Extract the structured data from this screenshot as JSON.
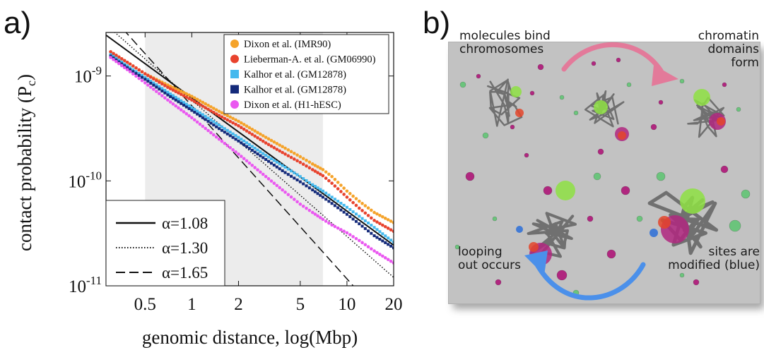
{
  "panel_a": {
    "label": "a)",
    "chart_data": {
      "type": "scatter",
      "xlabel": "genomic distance, log(Mbp)",
      "ylabel": "contact probability (P",
      "ylabel_sub": "c",
      "ylabel_close": ")",
      "x_scale": "log",
      "y_scale": "log",
      "xlim": [
        0.28,
        20
      ],
      "ylim": [
        1e-11,
        2.6e-09
      ],
      "x_ticks": [
        0.5,
        1,
        2,
        5,
        10,
        20
      ],
      "x_tick_labels": [
        "0.5",
        "1",
        "2",
        "5",
        "10",
        "20"
      ],
      "y_ticks": [
        1e-09,
        1e-10,
        1e-11
      ],
      "y_tick_labels": [
        {
          "base": "10",
          "exp": "-9"
        },
        {
          "base": "10",
          "exp": "-10"
        },
        {
          "base": "10",
          "exp": "-11"
        }
      ],
      "shaded_region": [
        0.5,
        7.0
      ],
      "legend_location": "top-right",
      "series": [
        {
          "name": "Dixon et al. (IMR90)",
          "color": "#f5a32a",
          "marker": "circle",
          "points": [
            [
              0.3,
              1.7e-09
            ],
            [
              0.4,
              1.3e-09
            ],
            [
              0.5,
              1.05e-09
            ],
            [
              0.7,
              8.2e-10
            ],
            [
              1,
              6.4e-10
            ],
            [
              1.5,
              4.6e-10
            ],
            [
              2,
              3.7e-10
            ],
            [
              3,
              2.6e-10
            ],
            [
              4,
              2.05e-10
            ],
            [
              5,
              1.7e-10
            ],
            [
              6,
              1.45e-10
            ],
            [
              7,
              1.28e-10
            ],
            [
              8,
              1.1e-10
            ],
            [
              10,
              8e-11
            ],
            [
              12,
              6.4e-11
            ],
            [
              15,
              5e-11
            ],
            [
              20,
              4e-11
            ]
          ]
        },
        {
          "name": "Lieberman-A. et al. (GM06990)",
          "color": "#e8432e",
          "marker": "circle",
          "points": [
            [
              0.3,
              1.7e-09
            ],
            [
              0.4,
              1.3e-09
            ],
            [
              0.5,
              1.05e-09
            ],
            [
              0.7,
              7.8e-10
            ],
            [
              1,
              5.9e-10
            ],
            [
              1.5,
              4.2e-10
            ],
            [
              2,
              3.35e-10
            ],
            [
              3,
              2.3e-10
            ],
            [
              4,
              1.8e-10
            ],
            [
              5,
              1.5e-10
            ],
            [
              6,
              1.28e-10
            ],
            [
              7,
              1.12e-10
            ],
            [
              8,
              9.5e-11
            ],
            [
              10,
              7e-11
            ],
            [
              12,
              5.5e-11
            ],
            [
              15,
              4.2e-11
            ],
            [
              20,
              3.3e-11
            ]
          ]
        },
        {
          "name": "Kalhor et al. (GM12878)",
          "color": "#45b9ee",
          "marker": "square",
          "points": [
            [
              0.3,
              1.6e-09
            ],
            [
              0.4,
              1.2e-09
            ],
            [
              0.5,
              9.7e-10
            ],
            [
              0.7,
              7e-10
            ],
            [
              1,
              5e-10
            ],
            [
              1.5,
              3.4e-10
            ],
            [
              2,
              2.6e-10
            ],
            [
              3,
              1.75e-10
            ],
            [
              4,
              1.35e-10
            ],
            [
              5,
              1.1e-10
            ],
            [
              6,
              9.2e-11
            ],
            [
              7,
              8e-11
            ],
            [
              8,
              7e-11
            ],
            [
              10,
              5.6e-11
            ],
            [
              12,
              4.6e-11
            ],
            [
              15,
              3.6e-11
            ],
            [
              20,
              2.6e-11
            ]
          ]
        },
        {
          "name": "Kalhor et al. (GM12878)",
          "color": "#142a7a",
          "marker": "square",
          "points": [
            [
              0.3,
              1.55e-09
            ],
            [
              0.4,
              1.15e-09
            ],
            [
              0.5,
              9.3e-10
            ],
            [
              0.7,
              6.6e-10
            ],
            [
              1,
              4.7e-10
            ],
            [
              1.5,
              3.15e-10
            ],
            [
              2,
              2.4e-10
            ],
            [
              3,
              1.6e-10
            ],
            [
              4,
              1.2e-10
            ],
            [
              5,
              9.8e-11
            ],
            [
              6,
              8.2e-11
            ],
            [
              7,
              7e-11
            ],
            [
              8,
              6.1e-11
            ],
            [
              10,
              4.8e-11
            ],
            [
              12,
              3.9e-11
            ],
            [
              15,
              3e-11
            ],
            [
              20,
              2.3e-11
            ]
          ]
        },
        {
          "name": "Dixon et al. (H1-hESC)",
          "color": "#ea58f0",
          "marker": "circle",
          "points": [
            [
              0.3,
              1.5e-09
            ],
            [
              0.4,
              1.1e-09
            ],
            [
              0.5,
              8.6e-10
            ],
            [
              0.7,
              5.9e-10
            ],
            [
              1,
              4e-10
            ],
            [
              1.5,
              2.5e-10
            ],
            [
              2,
              1.8e-10
            ],
            [
              3,
              1.1e-10
            ],
            [
              4,
              7.8e-11
            ],
            [
              5,
              6e-11
            ],
            [
              6,
              5e-11
            ],
            [
              7,
              4.3e-11
            ],
            [
              8,
              3.8e-11
            ],
            [
              10,
              3.2e-11
            ],
            [
              12,
              2.7e-11
            ],
            [
              15,
              2.15e-11
            ],
            [
              20,
              1.65e-11
            ]
          ]
        }
      ],
      "reference_lines": [
        {
          "label": "α=1.08",
          "alpha": 1.08,
          "style": "solid",
          "anchor_x": 1,
          "anchor_y": 6.2e-10
        },
        {
          "label": "α=1.30",
          "alpha": 1.3,
          "style": "dotted",
          "anchor_x": 1,
          "anchor_y": 5.9e-10
        },
        {
          "label": "α=1.65",
          "alpha": 1.65,
          "style": "dashed",
          "anchor_x": 1,
          "anchor_y": 5.2e-10
        }
      ],
      "ref_legend_location": "bottom-left"
    }
  },
  "panel_b": {
    "label": "b)",
    "annotations": {
      "top_left": [
        "molecules bind",
        "chromosomes"
      ],
      "top_right": [
        "chromatin",
        "domains form"
      ],
      "bottom_left": [
        "looping",
        "out occurs"
      ],
      "bottom_right": [
        "sites are",
        "modified (blue)"
      ]
    },
    "colors": {
      "background": "#c2c2c2",
      "top_arrow": "#e37a9a",
      "bottom_arrow": "#4b90ea",
      "chromatin": "#707070",
      "active_domain": "#8ee043",
      "binder_magenta": "#b0277f",
      "binder_green": "#6bc47c",
      "red_segment": "#e4452a",
      "blue_segment": "#2b6ed8"
    }
  }
}
